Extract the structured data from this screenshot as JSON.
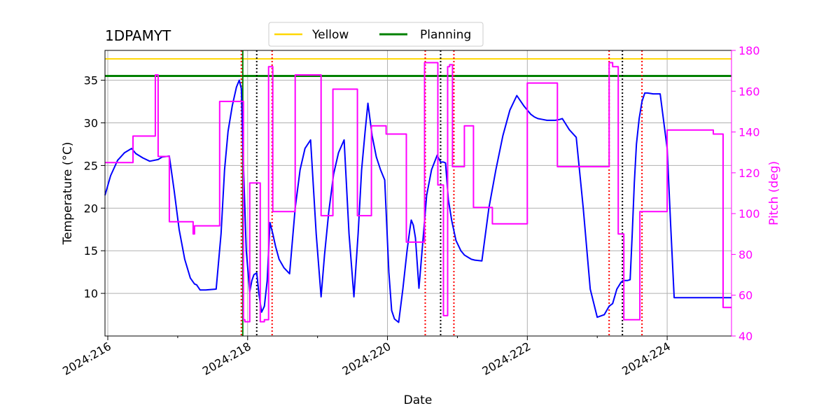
{
  "chart_data": {
    "type": "line",
    "title": "1DPAMYT",
    "xlabel": "Date",
    "ylabel_left": "Temperature ($^\\circ$C)",
    "ylabel_left_display": "Temperature (°C)",
    "ylabel_right": "Pitch (deg)",
    "xlim": [
      215.96,
      224.92
    ],
    "ylim_left": [
      5.0,
      38.5
    ],
    "ylim_right": [
      40,
      180
    ],
    "x_ticks": [
      {
        "value": 216,
        "label": "2024:216"
      },
      {
        "value": 218,
        "label": "2024:218"
      },
      {
        "value": 220,
        "label": "2024:220"
      },
      {
        "value": 222,
        "label": "2024:222"
      },
      {
        "value": 224,
        "label": "2024:224"
      }
    ],
    "x_minor_ticks": [
      217,
      219,
      221,
      223
    ],
    "y_left_ticks": [
      10,
      15,
      20,
      25,
      30,
      35
    ],
    "y_right_ticks": [
      40,
      60,
      80,
      100,
      120,
      140,
      160,
      180
    ],
    "grid": true,
    "legend_position": "top-center",
    "colors": {
      "temperature": "#0000ff",
      "pitch": "#ff00ff",
      "yellow_limit": "#ffd700",
      "planning_limit": "#008000",
      "red_lines": "#ff0000",
      "black_lines": "#000000",
      "green_line": "#008000",
      "right_axis": "#ff00ff"
    },
    "legend": [
      {
        "name": "Yellow",
        "color": "#ffd700"
      },
      {
        "name": "Planning",
        "color": "#008000"
      }
    ],
    "limits": {
      "yellow": 37.5,
      "planning": 35.5
    },
    "vertical_lines": {
      "red": [
        217.91,
        218.35,
        220.54,
        220.95,
        223.17,
        223.64
      ],
      "black": [
        218.13,
        220.76,
        223.36
      ],
      "green": [
        217.93
      ]
    },
    "series": [
      {
        "name": "Temperature",
        "axis": "left",
        "x": [
          215.96,
          216.04,
          216.14,
          216.24,
          216.34,
          216.4,
          216.5,
          216.6,
          216.72,
          216.78,
          216.88,
          216.95,
          217.02,
          217.1,
          217.18,
          217.24,
          217.27,
          217.32,
          217.4,
          217.55,
          217.62,
          217.67,
          217.72,
          217.78,
          217.84,
          217.88,
          217.91,
          217.94,
          217.98,
          218.03,
          218.06,
          218.09,
          218.13,
          218.16,
          218.2,
          218.24,
          218.28,
          218.32,
          218.36,
          218.4,
          218.45,
          218.52,
          218.6,
          218.68,
          218.75,
          218.82,
          218.9,
          218.98,
          219.05,
          219.1,
          219.16,
          219.23,
          219.3,
          219.38,
          219.45,
          219.52,
          219.58,
          219.63,
          219.68,
          219.72,
          219.78,
          219.84,
          219.9,
          219.96,
          220.02,
          220.06,
          220.1,
          220.16,
          220.22,
          220.28,
          220.32,
          220.34,
          220.37,
          220.4,
          220.45,
          220.52,
          220.56,
          220.63,
          220.71,
          220.76,
          220.8,
          220.83,
          220.87,
          220.92,
          220.98,
          221.05,
          221.1,
          221.16,
          221.2,
          221.25,
          221.35,
          221.45,
          221.55,
          221.65,
          221.75,
          221.85,
          221.95,
          222.0,
          222.05,
          222.1,
          222.15,
          222.22,
          222.28,
          222.34,
          222.4,
          222.46,
          222.5,
          222.6,
          222.7,
          222.8,
          222.9,
          223.0,
          223.1,
          223.17,
          223.22,
          223.28,
          223.34,
          223.37,
          223.4,
          223.43,
          223.47,
          223.5,
          223.53,
          223.56,
          223.6,
          223.64,
          223.68,
          223.72,
          223.8,
          223.9,
          224.0,
          224.05,
          224.1,
          224.15,
          224.2,
          224.28,
          224.36,
          224.44,
          224.52,
          224.6,
          224.65,
          224.72,
          224.8,
          224.84,
          224.87,
          224.89,
          224.92
        ],
        "y": [
          21.5,
          23.8,
          25.6,
          26.5,
          27.0,
          26.4,
          25.9,
          25.5,
          25.7,
          26.0,
          26.1,
          22.0,
          17.5,
          14.0,
          11.8,
          11.1,
          11.0,
          10.4,
          10.4,
          10.5,
          17.0,
          24.5,
          29.0,
          32.0,
          34.2,
          35.0,
          34.0,
          25.0,
          15.0,
          10.2,
          11.5,
          12.2,
          12.4,
          10.0,
          7.8,
          8.5,
          11.5,
          18.3,
          17.0,
          15.5,
          14.0,
          13.0,
          12.3,
          20.0,
          24.5,
          27.0,
          28.0,
          17.0,
          9.6,
          14.5,
          19.5,
          24.0,
          26.5,
          28.0,
          17.0,
          9.6,
          17.0,
          24.5,
          29.0,
          32.3,
          28.5,
          26.0,
          24.5,
          23.3,
          12.5,
          8.0,
          7.0,
          6.6,
          10.5,
          15.0,
          17.5,
          18.6,
          18.0,
          16.5,
          10.6,
          17.5,
          21.5,
          24.5,
          26.2,
          25.4,
          25.4,
          25.3,
          21.0,
          18.5,
          16.2,
          15.0,
          14.5,
          14.2,
          14.0,
          13.9,
          13.8,
          20.0,
          24.5,
          28.5,
          31.5,
          33.2,
          32.0,
          31.5,
          31.0,
          30.7,
          30.5,
          30.4,
          30.3,
          30.3,
          30.3,
          30.4,
          30.5,
          29.2,
          28.3,
          20.0,
          10.5,
          7.2,
          7.5,
          8.5,
          8.8,
          10.5,
          11.3,
          11.5,
          11.5,
          11.5,
          11.6,
          17.0,
          23.0,
          27.5,
          30.5,
          32.5,
          33.5,
          33.5,
          33.4,
          33.4,
          27.0,
          18.0,
          9.5,
          9.5,
          9.5,
          9.5,
          9.5,
          9.5,
          9.5,
          9.5,
          9.5,
          9.5,
          9.5,
          9.5,
          9.5,
          9.5,
          9.5
        ],
        "color": "#0000ff"
      },
      {
        "name": "Pitch",
        "axis": "right",
        "x": [
          215.96,
          216.36,
          216.36,
          216.68,
          216.68,
          216.72,
          216.72,
          216.88,
          216.88,
          217.22,
          217.22,
          217.24,
          217.24,
          217.6,
          217.6,
          217.94,
          217.94,
          217.96,
          217.96,
          218.03,
          218.03,
          218.07,
          218.07,
          218.1,
          218.1,
          218.18,
          218.18,
          218.24,
          218.24,
          218.3,
          218.3,
          218.36,
          218.36,
          218.68,
          218.68,
          219.05,
          219.05,
          219.22,
          219.22,
          219.57,
          219.57,
          219.77,
          219.77,
          219.98,
          219.98,
          220.27,
          220.27,
          220.53,
          220.53,
          220.72,
          220.72,
          220.8,
          220.8,
          220.86,
          220.86,
          220.89,
          220.89,
          220.93,
          220.93,
          221.1,
          221.1,
          221.23,
          221.23,
          221.5,
          221.5,
          222.0,
          222.0,
          222.43,
          222.43,
          223.17,
          223.17,
          223.22,
          223.22,
          223.3,
          223.3,
          223.38,
          223.38,
          223.44,
          223.44,
          223.6,
          223.6,
          223.61,
          223.61,
          224.0,
          224.0,
          224.66,
          224.66,
          224.8,
          224.8,
          224.92
        ],
        "y": [
          125,
          125,
          138,
          138,
          168,
          168,
          128,
          128,
          96,
          96,
          90,
          90,
          94,
          94,
          155,
          155,
          48,
          48,
          47,
          47,
          115,
          115,
          115,
          115,
          115,
          115,
          47,
          47,
          48,
          48,
          172,
          172,
          101,
          101,
          168,
          168,
          99,
          99,
          161,
          161,
          99,
          99,
          143,
          143,
          139,
          139,
          86,
          86,
          174,
          174,
          114,
          114,
          50,
          50,
          172,
          172,
          173,
          173,
          123,
          123,
          143,
          143,
          103,
          103,
          95,
          95,
          164,
          164,
          123,
          123,
          174,
          174,
          172,
          172,
          90,
          90,
          48,
          48,
          48,
          48,
          48,
          48,
          101,
          101,
          141,
          141,
          139,
          139,
          54,
          54
        ],
        "color": "#ff00ff"
      }
    ]
  }
}
